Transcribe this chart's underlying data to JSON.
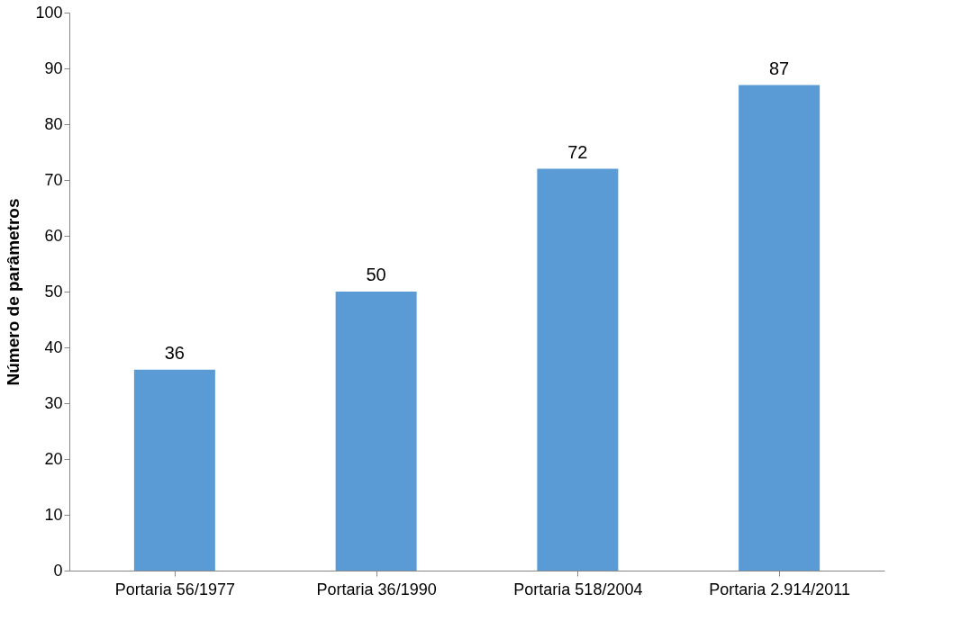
{
  "chart_data": {
    "type": "bar",
    "ylabel": "Número de parâmetros",
    "categories": [
      "Portaria 56/1977",
      "Portaria 36/1990",
      "Portaria 518/2004",
      "Portaria 2.914/2011"
    ],
    "values": [
      36,
      50,
      72,
      87
    ],
    "color": "#5b9bd5",
    "ylim": [
      0,
      100
    ],
    "yticks": [
      0,
      10,
      20,
      30,
      40,
      50,
      60,
      70,
      80,
      90,
      100
    ],
    "data_labels": true,
    "grid": false
  }
}
